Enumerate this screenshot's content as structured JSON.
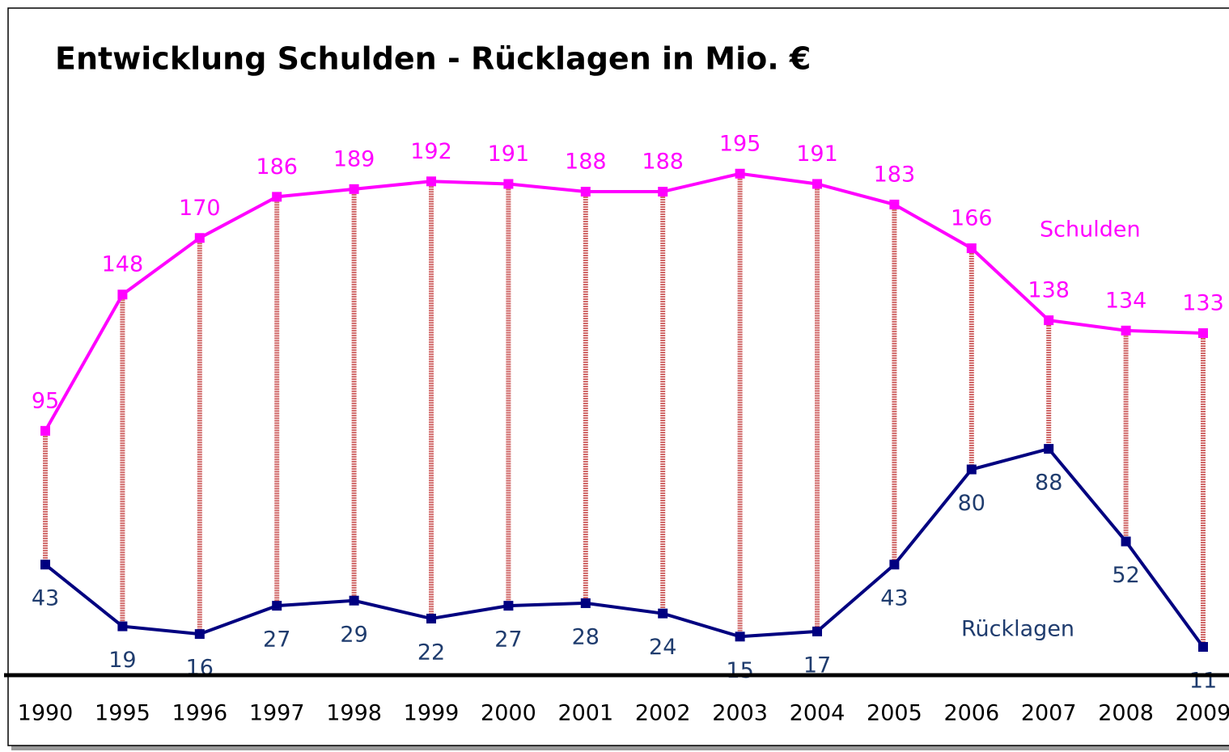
{
  "chart_data": {
    "type": "line",
    "title": "Entwicklung Schulden - Rücklagen in Mio. €",
    "categories": [
      "1990",
      "1995",
      "1996",
      "1997",
      "1998",
      "1999",
      "2000",
      "2001",
      "2002",
      "2003",
      "2004",
      "2005",
      "2006",
      "2007",
      "2008",
      "2009"
    ],
    "series": [
      {
        "name": "Schulden",
        "color": "#ff00ff",
        "values": [
          95,
          148,
          170,
          186,
          189,
          192,
          191,
          188,
          188,
          195,
          191,
          183,
          166,
          138,
          134,
          133
        ]
      },
      {
        "name": "Rücklagen",
        "color": "#000080",
        "values": [
          43,
          19,
          16,
          27,
          29,
          22,
          27,
          28,
          24,
          15,
          17,
          43,
          80,
          88,
          52,
          11
        ]
      }
    ],
    "ylim": [
      0,
      260
    ]
  }
}
